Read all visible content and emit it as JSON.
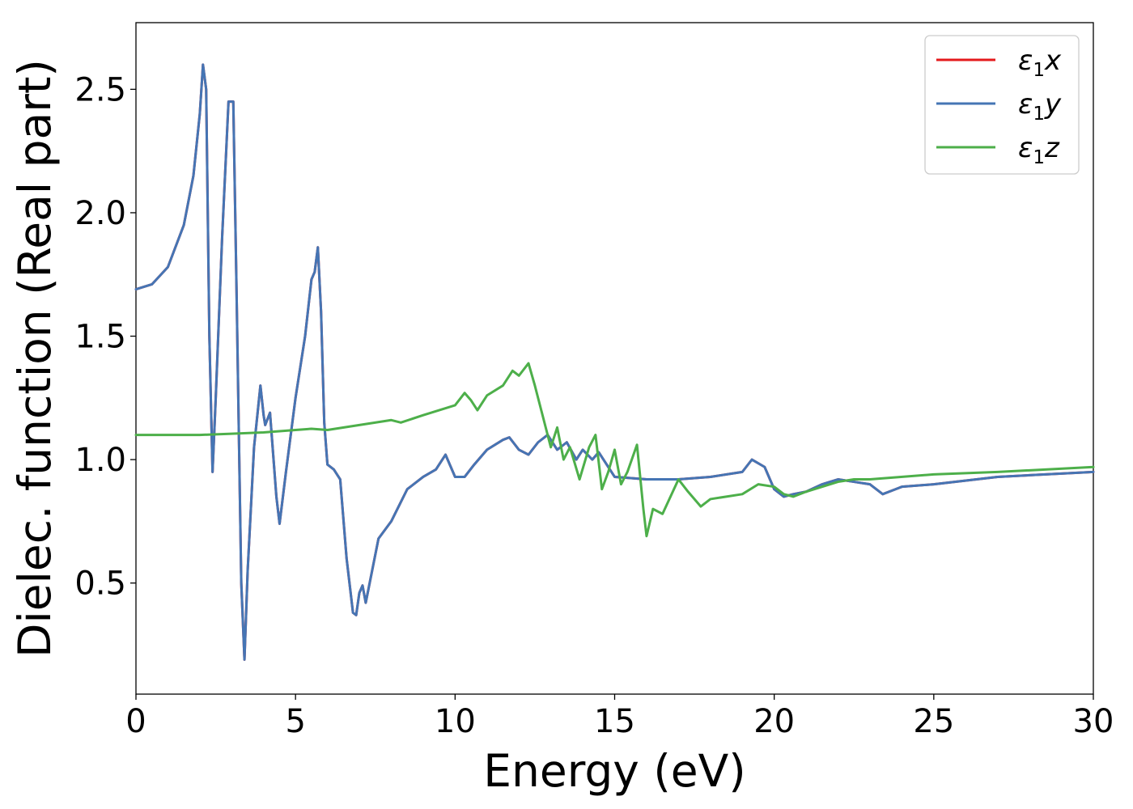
{
  "chart_data": {
    "type": "line",
    "xlabel": "Energy (eV)",
    "ylabel": "Dielec. function (Real part)",
    "xlim": [
      0,
      30
    ],
    "ylim": [
      0.05,
      2.77
    ],
    "xticks": [
      0,
      5,
      10,
      15,
      20,
      25,
      30
    ],
    "xtick_labels": [
      "0",
      "5",
      "10",
      "15",
      "20",
      "25",
      "30"
    ],
    "yticks": [
      0.5,
      1.0,
      1.5,
      2.0,
      2.5
    ],
    "ytick_labels": [
      "0.5",
      "1.0",
      "1.5",
      "2.0",
      "2.5"
    ],
    "grid": false,
    "legend_position": "top-right",
    "series": [
      {
        "name": "ε1x",
        "sym": "ε",
        "sub": "1",
        "var": "x",
        "color": "#e41a1c",
        "x": [
          0,
          0.5,
          1.0,
          1.5,
          1.8,
          2.0,
          2.1,
          2.2,
          2.3,
          2.4,
          2.5,
          2.7,
          2.9,
          3.05,
          3.15,
          3.3,
          3.4,
          3.5,
          3.7,
          3.9,
          4.0,
          4.05,
          4.2,
          4.4,
          4.5,
          4.7,
          5.0,
          5.3,
          5.5,
          5.6,
          5.7,
          5.8,
          5.9,
          6.0,
          6.2,
          6.4,
          6.6,
          6.8,
          6.9,
          7.0,
          7.1,
          7.2,
          7.4,
          7.6,
          8.0,
          8.5,
          9.0,
          9.4,
          9.7,
          10.0,
          10.3,
          10.6,
          11.0,
          11.5,
          11.7,
          12.0,
          12.3,
          12.6,
          12.9,
          13.2,
          13.5,
          13.8,
          14.0,
          14.3,
          14.5,
          15.0,
          16.0,
          17.0,
          18.0,
          19.0,
          19.3,
          19.7,
          20.0,
          20.3,
          20.6,
          21.0,
          21.5,
          22.0,
          22.5,
          23.0,
          23.4,
          23.8,
          24.0,
          25.0,
          27.0,
          30.0
        ],
        "y": [
          1.69,
          1.71,
          1.78,
          1.95,
          2.15,
          2.4,
          2.6,
          2.5,
          1.5,
          0.95,
          1.25,
          1.9,
          2.45,
          2.45,
          1.7,
          0.5,
          0.19,
          0.55,
          1.05,
          1.3,
          1.18,
          1.14,
          1.19,
          0.85,
          0.74,
          0.95,
          1.25,
          1.5,
          1.73,
          1.76,
          1.86,
          1.6,
          1.15,
          0.98,
          0.96,
          0.92,
          0.6,
          0.38,
          0.37,
          0.46,
          0.49,
          0.42,
          0.55,
          0.68,
          0.75,
          0.88,
          0.93,
          0.96,
          1.02,
          0.93,
          0.93,
          0.98,
          1.04,
          1.08,
          1.09,
          1.04,
          1.02,
          1.07,
          1.1,
          1.04,
          1.07,
          1.0,
          1.04,
          1.0,
          1.03,
          0.93,
          0.92,
          0.92,
          0.93,
          0.95,
          1.0,
          0.97,
          0.88,
          0.85,
          0.86,
          0.87,
          0.9,
          0.92,
          0.91,
          0.9,
          0.86,
          0.88,
          0.89,
          0.9,
          0.93,
          0.95
        ]
      },
      {
        "name": "ε1y",
        "sym": "ε",
        "sub": "1",
        "var": "y",
        "color": "#4575b4",
        "x": [
          0,
          0.5,
          1.0,
          1.5,
          1.8,
          2.0,
          2.1,
          2.2,
          2.3,
          2.4,
          2.5,
          2.7,
          2.9,
          3.05,
          3.15,
          3.3,
          3.4,
          3.5,
          3.7,
          3.9,
          4.0,
          4.05,
          4.2,
          4.4,
          4.5,
          4.7,
          5.0,
          5.3,
          5.5,
          5.6,
          5.7,
          5.8,
          5.9,
          6.0,
          6.2,
          6.4,
          6.6,
          6.8,
          6.9,
          7.0,
          7.1,
          7.2,
          7.4,
          7.6,
          8.0,
          8.5,
          9.0,
          9.4,
          9.7,
          10.0,
          10.3,
          10.6,
          11.0,
          11.5,
          11.7,
          12.0,
          12.3,
          12.6,
          12.9,
          13.2,
          13.5,
          13.8,
          14.0,
          14.3,
          14.5,
          15.0,
          16.0,
          17.0,
          18.0,
          19.0,
          19.3,
          19.7,
          20.0,
          20.3,
          20.6,
          21.0,
          21.5,
          22.0,
          22.5,
          23.0,
          23.4,
          23.8,
          24.0,
          25.0,
          27.0,
          30.0
        ],
        "y": [
          1.69,
          1.71,
          1.78,
          1.95,
          2.15,
          2.4,
          2.6,
          2.5,
          1.5,
          0.95,
          1.25,
          1.9,
          2.45,
          2.45,
          1.7,
          0.5,
          0.19,
          0.55,
          1.05,
          1.3,
          1.18,
          1.14,
          1.19,
          0.85,
          0.74,
          0.95,
          1.25,
          1.5,
          1.73,
          1.76,
          1.86,
          1.6,
          1.15,
          0.98,
          0.96,
          0.92,
          0.6,
          0.38,
          0.37,
          0.46,
          0.49,
          0.42,
          0.55,
          0.68,
          0.75,
          0.88,
          0.93,
          0.96,
          1.02,
          0.93,
          0.93,
          0.98,
          1.04,
          1.08,
          1.09,
          1.04,
          1.02,
          1.07,
          1.1,
          1.04,
          1.07,
          1.0,
          1.04,
          1.0,
          1.03,
          0.93,
          0.92,
          0.92,
          0.93,
          0.95,
          1.0,
          0.97,
          0.88,
          0.85,
          0.86,
          0.87,
          0.9,
          0.92,
          0.91,
          0.9,
          0.86,
          0.88,
          0.89,
          0.9,
          0.93,
          0.95
        ]
      },
      {
        "name": "ε1z",
        "sym": "ε",
        "sub": "1",
        "var": "z",
        "color": "#4daf4a",
        "x": [
          0,
          2,
          3,
          4,
          5,
          5.5,
          6,
          7,
          8,
          8.3,
          9,
          9.5,
          10,
          10.3,
          10.5,
          10.7,
          11,
          11.5,
          11.8,
          12.0,
          12.3,
          12.5,
          12.7,
          13.0,
          13.2,
          13.4,
          13.6,
          13.9,
          14.2,
          14.4,
          14.6,
          14.8,
          15.0,
          15.2,
          15.4,
          15.7,
          15.9,
          16.0,
          16.2,
          16.5,
          17.0,
          17.3,
          17.7,
          18.0,
          18.5,
          19.0,
          19.5,
          20.0,
          20.3,
          20.6,
          21.0,
          21.5,
          22.0,
          22.5,
          23.0,
          25.0,
          27.0,
          30.0
        ],
        "y": [
          1.1,
          1.1,
          1.105,
          1.11,
          1.12,
          1.125,
          1.12,
          1.14,
          1.16,
          1.15,
          1.18,
          1.2,
          1.22,
          1.27,
          1.24,
          1.2,
          1.26,
          1.3,
          1.36,
          1.34,
          1.39,
          1.3,
          1.2,
          1.05,
          1.13,
          1.0,
          1.05,
          0.92,
          1.05,
          1.1,
          0.88,
          0.95,
          1.04,
          0.9,
          0.95,
          1.06,
          0.8,
          0.69,
          0.8,
          0.78,
          0.92,
          0.87,
          0.81,
          0.84,
          0.85,
          0.86,
          0.9,
          0.89,
          0.86,
          0.85,
          0.87,
          0.89,
          0.91,
          0.92,
          0.92,
          0.94,
          0.95,
          0.97
        ]
      }
    ]
  }
}
